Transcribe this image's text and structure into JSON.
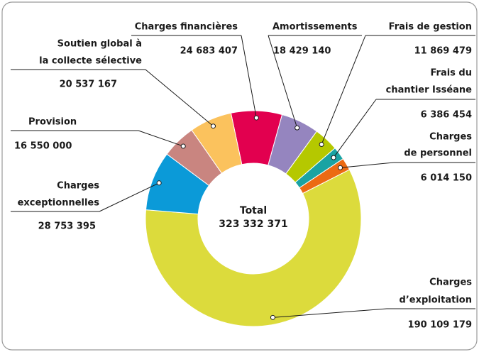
{
  "chart_data": {
    "type": "donut",
    "categories": [
      [
        "Charges financières"
      ],
      [
        "Amortissements"
      ],
      [
        "Frais de gestion"
      ],
      [
        "Frais du",
        "chantier Isséane"
      ],
      [
        "Charges",
        "de personnel"
      ],
      [
        "Charges",
        "d’exploitation"
      ],
      [
        "Charges",
        "exceptionnelles"
      ],
      [
        "Provision"
      ],
      [
        "Soutien global à",
        "la collecte sélective"
      ]
    ],
    "values": [
      24683407,
      18429140,
      11869479,
      6386454,
      6014150,
      190109179,
      28753395,
      16550000,
      20537167
    ],
    "value_labels": [
      "24 683 407",
      "18 429 140",
      "11 869 479",
      "6 386 454",
      "6 014 150",
      "190 109 179",
      "28 753 395",
      "16 550 000",
      "20 537 167"
    ],
    "colors": [
      "#e2004f",
      "#9585bf",
      "#b5c800",
      "#1aa3a3",
      "#ec6a13",
      "#dcdb3c",
      "#0b9ad8",
      "#c98580",
      "#fbc25d"
    ],
    "center_title": "Total",
    "total": {
      "value": 323332371,
      "label": "323 332 371"
    }
  }
}
